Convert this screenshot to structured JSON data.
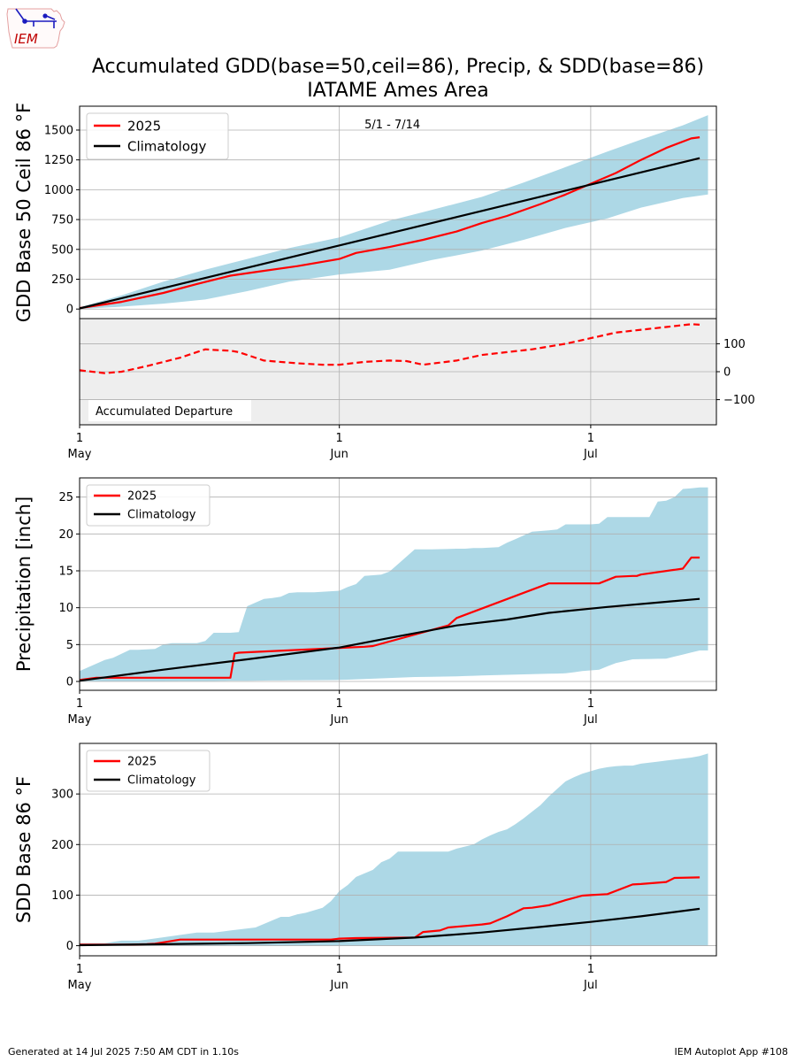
{
  "logo": {
    "text": "IEM",
    "icon": "iowa-state-outline-logo"
  },
  "title": {
    "line1": "Accumulated GDD(base=50,ceil=86), Precip, & SDD(base=86)",
    "line2": "IATAME Ames Area"
  },
  "footer": {
    "left": "Generated at 14 Jul 2025 7:50 AM CDT in 1.10s",
    "right": "IEM Autoplot App #108"
  },
  "colors": {
    "observed": "#ff0000",
    "climatology": "#000000",
    "range": "#add8e6",
    "departure_bg": "#eeeeee",
    "grid": "#b0b0b0"
  },
  "date_ticks": [
    {
      "day": 0,
      "label": "1",
      "month": "May"
    },
    {
      "day": 31,
      "label": "1",
      "month": "Jun"
    },
    {
      "day": 61,
      "label": "1",
      "month": "Jul"
    }
  ],
  "chart_data": [
    {
      "id": "gdd",
      "type": "area",
      "ylabel": "GDD Base 50 Ceil 86 °F",
      "annotation": "5/1 - 7/14",
      "xlim": [
        0,
        76
      ],
      "ylim": [
        -80,
        1700
      ],
      "yticks": [
        0,
        250,
        500,
        750,
        1000,
        1250,
        1500
      ],
      "legend": {
        "placement": "upper-left",
        "entries": [
          "2025",
          "Climatology"
        ]
      },
      "series": [
        {
          "name": "2025",
          "style": "line",
          "x": [
            0,
            5,
            10,
            14,
            18,
            21,
            26,
            31,
            33,
            37,
            41,
            45,
            48,
            51,
            55,
            58,
            61,
            64,
            67,
            70,
            73,
            74
          ],
          "values": [
            8,
            60,
            135,
            210,
            280,
            310,
            360,
            420,
            470,
            520,
            580,
            650,
            720,
            780,
            880,
            960,
            1050,
            1140,
            1250,
            1350,
            1430,
            1440
          ]
        },
        {
          "name": "Climatology",
          "style": "line",
          "x": [
            0,
            74
          ],
          "values": [
            5,
            1265
          ]
        },
        {
          "name": "Range max",
          "style": "band",
          "x": [
            0,
            5,
            10,
            15,
            20,
            25,
            31,
            37,
            42,
            48,
            53,
            58,
            63,
            67,
            72,
            75
          ],
          "values": [
            15,
            115,
            230,
            330,
            420,
            510,
            600,
            740,
            830,
            940,
            1060,
            1190,
            1320,
            1420,
            1540,
            1625
          ]
        },
        {
          "name": "Range min",
          "style": "band",
          "x": [
            0,
            5,
            10,
            15,
            20,
            25,
            31,
            37,
            42,
            48,
            53,
            58,
            63,
            67,
            72,
            75
          ],
          "values": [
            0,
            20,
            45,
            80,
            150,
            230,
            290,
            330,
            410,
            490,
            580,
            680,
            760,
            850,
            930,
            960
          ]
        }
      ]
    },
    {
      "id": "departure",
      "type": "line",
      "label": "Accumulated Departure",
      "xlim": [
        0,
        76
      ],
      "ylim": [
        -190,
        190
      ],
      "yticks": [
        -100,
        0,
        100
      ],
      "series": [
        {
          "name": "2025 departure",
          "style": "dashed",
          "x": [
            0,
            3,
            5,
            8,
            12,
            15,
            16,
            18,
            19,
            22,
            26,
            29,
            31,
            34,
            37,
            39,
            41,
            45,
            48,
            51,
            54,
            58,
            61,
            64,
            67,
            70,
            73,
            74
          ],
          "values": [
            5,
            -5,
            0,
            20,
            50,
            80,
            78,
            75,
            70,
            40,
            30,
            25,
            25,
            35,
            40,
            38,
            25,
            40,
            60,
            70,
            80,
            100,
            120,
            140,
            150,
            160,
            170,
            168
          ]
        }
      ]
    },
    {
      "id": "precip",
      "type": "area",
      "ylabel": "Precipitation [inch]",
      "xlim": [
        0,
        76
      ],
      "ylim": [
        -1.2,
        27.6
      ],
      "yticks": [
        0,
        5,
        10,
        15,
        20,
        25
      ],
      "legend": {
        "placement": "upper-left",
        "entries": [
          "2025",
          "Climatology"
        ]
      },
      "series": [
        {
          "name": "2025",
          "style": "line",
          "x": [
            0,
            2,
            18,
            18.5,
            19,
            34,
            35,
            44,
            44.5,
            45,
            56,
            57,
            58,
            62,
            64,
            66,
            66.5,
            67,
            72,
            73,
            74
          ],
          "values": [
            0.2,
            0.5,
            0.5,
            3.8,
            3.9,
            4.7,
            4.8,
            7.6,
            8.1,
            8.6,
            13.3,
            13.3,
            13.3,
            13.3,
            14.2,
            14.3,
            14.3,
            14.5,
            15.3,
            16.8,
            16.8
          ]
        },
        {
          "name": "Climatology",
          "style": "line",
          "x": [
            0,
            10,
            20,
            31,
            37,
            45,
            51,
            56,
            63,
            70,
            74
          ],
          "values": [
            0.1,
            1.6,
            3.0,
            4.6,
            5.9,
            7.6,
            8.4,
            9.3,
            10.1,
            10.8,
            11.2
          ]
        },
        {
          "name": "Range max",
          "style": "band",
          "x": [
            0,
            3,
            4,
            6,
            7,
            9,
            10,
            11,
            12,
            14,
            15,
            16,
            17,
            18,
            19,
            20,
            22,
            23,
            24,
            25,
            26,
            27,
            28,
            31,
            32,
            33,
            34,
            36,
            37,
            40,
            42,
            45,
            46,
            47,
            48,
            50,
            51,
            52,
            53,
            54,
            55,
            56,
            57,
            58,
            59,
            60,
            61,
            62,
            63,
            64,
            65,
            66,
            67,
            68,
            69,
            70,
            71,
            72,
            73,
            74,
            75
          ],
          "values": [
            1.4,
            2.9,
            3.2,
            4.3,
            4.3,
            4.4,
            5.0,
            5.2,
            5.2,
            5.2,
            5.5,
            6.6,
            6.6,
            6.6,
            6.7,
            10.2,
            11.2,
            11.3,
            11.5,
            12.0,
            12.1,
            12.1,
            12.1,
            12.3,
            12.8,
            13.2,
            14.3,
            14.5,
            14.9,
            17.9,
            17.9,
            18.0,
            18.0,
            18.1,
            18.1,
            18.2,
            18.8,
            19.3,
            19.8,
            20.3,
            20.4,
            20.5,
            20.6,
            21.3,
            21.3,
            21.3,
            21.3,
            21.4,
            22.3,
            22.3,
            22.3,
            22.3,
            22.3,
            22.3,
            24.4,
            24.5,
            25.0,
            26.1,
            26.2,
            26.3,
            26.3
          ]
        },
        {
          "name": "Range min",
          "style": "band",
          "x": [
            0,
            10,
            20,
            31,
            40,
            45,
            51,
            58,
            60,
            62,
            64,
            66,
            70,
            74,
            75
          ],
          "values": [
            0,
            0,
            0.1,
            0.2,
            0.6,
            0.7,
            0.9,
            1.1,
            1.4,
            1.6,
            2.5,
            3.0,
            3.1,
            4.2,
            4.2
          ]
        }
      ]
    },
    {
      "id": "sdd",
      "type": "area",
      "ylabel": "SDD Base 86 °F",
      "xlim": [
        0,
        76
      ],
      "ylim": [
        -20,
        400
      ],
      "yticks": [
        0,
        100,
        200,
        300
      ],
      "legend": {
        "placement": "upper-left",
        "entries": [
          "2025",
          "Climatology"
        ]
      },
      "series": [
        {
          "name": "2025",
          "style": "line",
          "x": [
            0,
            6,
            8,
            9,
            12,
            30,
            31,
            33,
            40,
            41,
            43,
            44,
            46,
            48,
            49,
            51,
            53,
            54,
            56,
            58,
            60,
            61,
            63,
            66,
            67,
            70,
            71,
            74
          ],
          "values": [
            2,
            2,
            3,
            4,
            12,
            12,
            14,
            15,
            16,
            27,
            30,
            36,
            39,
            42,
            44,
            58,
            74,
            75,
            80,
            90,
            99,
            100,
            102,
            121,
            122,
            126,
            134,
            135
          ]
        },
        {
          "name": "Climatology",
          "style": "line",
          "x": [
            0,
            10,
            20,
            31,
            40,
            48,
            55,
            61,
            67,
            74
          ],
          "values": [
            1,
            3,
            5,
            9,
            16,
            26,
            37,
            47,
            58,
            73
          ]
        },
        {
          "name": "Range max",
          "style": "band",
          "x": [
            0,
            3,
            5,
            7,
            8,
            14,
            15,
            16,
            17,
            18,
            19,
            20,
            21,
            24,
            25,
            26,
            27,
            29,
            30,
            31,
            32,
            33,
            35,
            36,
            37,
            38,
            40,
            44,
            45,
            47,
            48,
            49,
            50,
            51,
            52,
            53,
            54,
            55,
            56,
            57,
            58,
            59,
            60,
            61,
            62,
            63,
            64,
            65,
            66,
            67,
            68,
            69,
            70,
            71,
            72,
            73,
            74,
            75
          ],
          "values": [
            5,
            5,
            10,
            10,
            12,
            26,
            26,
            26,
            28,
            30,
            32,
            34,
            36,
            57,
            57,
            62,
            65,
            75,
            88,
            108,
            120,
            136,
            150,
            165,
            172,
            186,
            186,
            186,
            192,
            200,
            210,
            218,
            225,
            230,
            240,
            252,
            265,
            278,
            295,
            310,
            325,
            333,
            340,
            345,
            350,
            353,
            355,
            356,
            356,
            360,
            362,
            364,
            366,
            368,
            370,
            372,
            375,
            380
          ]
        },
        {
          "name": "Range min",
          "style": "band",
          "x": [
            0,
            75
          ],
          "values": [
            0,
            0
          ]
        }
      ]
    }
  ]
}
